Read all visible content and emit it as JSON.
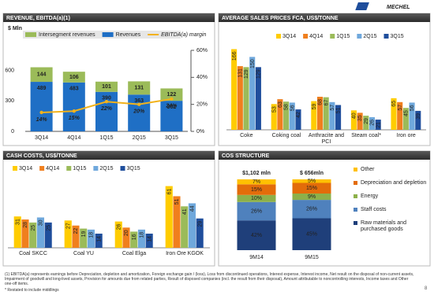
{
  "header": {
    "logo": "MECHEL"
  },
  "chart_data": [
    {
      "type": "combo",
      "title": "REVENUE, EBITDA(a)(1)",
      "y_label": "$ Mln",
      "categories": [
        "3Q14",
        "4Q14",
        "1Q15",
        "2Q15",
        "3Q15"
      ],
      "series": [
        {
          "name": "Intersegment revenues",
          "color": "#9bbb59",
          "values": [
            144,
            106,
            101,
            131,
            122
          ]
        },
        {
          "name": "Revenues",
          "color": "#1f6fc5",
          "values": [
            489,
            483,
            390,
            363,
            302
          ]
        },
        {
          "name": "EBITDA(a) margin",
          "color": "#f2b21b",
          "axis": "y2",
          "values": [
            14,
            15,
            22,
            20,
            24
          ],
          "value_labels": [
            "14%",
            "15%",
            "22%",
            "20%",
            "24%"
          ]
        }
      ],
      "ylim": [
        0,
        800
      ],
      "yticks": [
        0,
        300,
        600
      ],
      "y2lim": [
        0,
        60
      ],
      "y2ticks": [
        {
          "value": 0,
          "label": "0%"
        },
        {
          "value": 20,
          "label": "20%"
        },
        {
          "value": 40,
          "label": "40%"
        },
        {
          "value": 60,
          "label": "60%"
        }
      ]
    },
    {
      "type": "bar",
      "title": "AVERAGE SALES PRICES FCA, US$/TONNE",
      "categories": [
        "Coke",
        "Coking coal",
        "Anthracite and PCI",
        "Steam coal*",
        "Iron ore"
      ],
      "series": [
        {
          "name": "3Q14",
          "color": "#ffcc00",
          "values": [
            166,
            53,
            59,
            40,
            65
          ]
        },
        {
          "name": "4Q14",
          "color": "#f07f1e",
          "values": [
            131,
            63,
            68,
            35,
            57
          ]
        },
        {
          "name": "1Q15",
          "color": "#9bbb59",
          "values": [
            129,
            58,
            67,
            29,
            45
          ]
        },
        {
          "name": "2Q15",
          "color": "#6fa8dc",
          "values": [
            150,
            56,
            57,
            26,
            56
          ]
        },
        {
          "name": "3Q15",
          "color": "#1f4e9c",
          "values": [
            129,
            42,
            51,
            21,
            39
          ]
        }
      ],
      "ylim": [
        0,
        170
      ]
    },
    {
      "type": "bar",
      "title": "CASH COSTS, US$/TONNE",
      "categories": [
        "Coal SKCC",
        "Coal YU",
        "Coal Elga",
        "Iron Ore KGOK"
      ],
      "series": [
        {
          "name": "3Q14",
          "color": "#ffcc00",
          "values": [
            31,
            27,
            26,
            61
          ]
        },
        {
          "name": "4Q14",
          "color": "#f07f1e",
          "values": [
            28,
            22,
            20,
            51
          ]
        },
        {
          "name": "1Q15",
          "color": "#9bbb59",
          "values": [
            25,
            19,
            16,
            41
          ]
        },
        {
          "name": "2Q15",
          "color": "#6fa8dc",
          "values": [
            30,
            18,
            18,
            44
          ]
        },
        {
          "name": "3Q15",
          "color": "#1f4e9c",
          "values": [
            25,
            14,
            14,
            29
          ]
        }
      ],
      "ylim": [
        0,
        70
      ]
    },
    {
      "type": "stacked",
      "title": "COS STRUCTURE",
      "categories": [
        "9M14",
        "9M15"
      ],
      "annotations": [
        "$1,102 mln",
        "$ 656mln"
      ],
      "series": [
        {
          "name": "Other",
          "color": "#ffc000",
          "values": [
            7,
            5
          ],
          "value_labels": [
            "7%",
            "5%"
          ]
        },
        {
          "name": "Depreciation and depletion",
          "color": "#e36c0a",
          "values": [
            15,
            15
          ],
          "value_labels": [
            "15%",
            "15%"
          ]
        },
        {
          "name": "Energy",
          "color": "#8db04a",
          "values": [
            10,
            9
          ],
          "value_labels": [
            "10%",
            "9%"
          ]
        },
        {
          "name": "Staff costs",
          "color": "#4f81bd",
          "values": [
            26,
            26
          ],
          "value_labels": [
            "26%",
            "26%"
          ]
        },
        {
          "name": "Raw materials and purchased goods",
          "color": "#1f3f7a",
          "values": [
            42,
            45
          ],
          "value_labels": [
            "42%",
            "45%"
          ]
        }
      ],
      "ylim": [
        0,
        100
      ]
    }
  ],
  "footnotes": [
    "(1)    EBITDA(a) represents earnings before Depreciation, depletion and amortization, Foreign exchange gain / (loss), Loss from discontinued operations, Interest expense, Interest income, Net result on the disposal of non-current assets, Impairment of goodwill and long-lived assets, Provision for amounts due from related parties, Result of disposed companies (incl. the result from their disposal), Amount attributable to noncontrolling interests, Income taxes and Other one-off items.",
    "* Restated to include middlings"
  ],
  "page_number": "8"
}
